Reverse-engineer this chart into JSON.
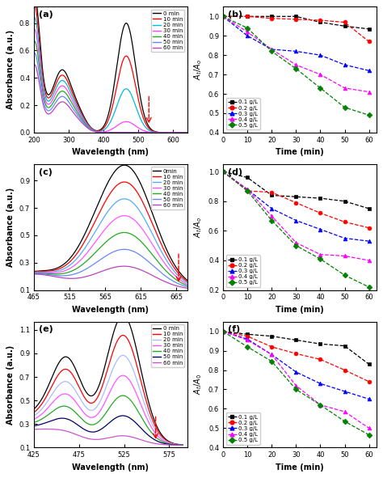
{
  "time_labels_a": [
    "0 min",
    "10 min",
    "20 min",
    "30 min",
    "40 min",
    "50 min",
    "60 min"
  ],
  "time_colors_a": [
    "black",
    "red",
    "#00aacc",
    "magenta",
    "green",
    "#4466ff",
    "#cc44cc"
  ],
  "time_colors_c": [
    "black",
    "red",
    "#00aacc",
    "magenta",
    "green",
    "#4466ff",
    "#cc44cc"
  ],
  "time_colors_e": [
    "black",
    "red",
    "#99bbff",
    "magenta",
    "green",
    "#000088",
    "#cc44cc"
  ],
  "conc_labels": [
    "0.1 g/L",
    "0.2 g/L",
    "0.3 g/L",
    "0.4 g/L",
    "0.5 g/L"
  ],
  "conc_colors": [
    "black",
    "red",
    "blue",
    "magenta",
    "green"
  ],
  "conc_markers": [
    "s",
    "o",
    "^",
    "^",
    "D"
  ],
  "time_points": [
    0,
    10,
    20,
    30,
    40,
    50,
    60
  ],
  "b_data": {
    "01": [
      1.0,
      1.0,
      1.0,
      1.0,
      0.97,
      0.95,
      0.935
    ],
    "02": [
      1.0,
      1.0,
      0.99,
      0.985,
      0.98,
      0.97,
      0.87
    ],
    "03": [
      1.0,
      0.9,
      0.83,
      0.82,
      0.8,
      0.75,
      0.72
    ],
    "04": [
      1.0,
      0.92,
      0.83,
      0.75,
      0.7,
      0.63,
      0.61
    ],
    "05": [
      1.0,
      0.94,
      0.82,
      0.73,
      0.63,
      0.53,
      0.49
    ]
  },
  "d_data": {
    "01": [
      1.0,
      0.96,
      0.84,
      0.83,
      0.82,
      0.8,
      0.75
    ],
    "02": [
      1.0,
      0.87,
      0.86,
      0.79,
      0.72,
      0.66,
      0.62
    ],
    "03": [
      1.0,
      0.88,
      0.75,
      0.67,
      0.61,
      0.55,
      0.53
    ],
    "04": [
      1.0,
      0.88,
      0.7,
      0.52,
      0.44,
      0.43,
      0.4
    ],
    "05": [
      1.0,
      0.87,
      0.67,
      0.5,
      0.41,
      0.3,
      0.22
    ]
  },
  "f_data": {
    "01": [
      1.0,
      0.985,
      0.975,
      0.955,
      0.935,
      0.925,
      0.83
    ],
    "02": [
      1.0,
      0.975,
      0.92,
      0.885,
      0.855,
      0.8,
      0.74
    ],
    "03": [
      1.0,
      0.96,
      0.88,
      0.79,
      0.73,
      0.69,
      0.65
    ],
    "04": [
      1.0,
      0.955,
      0.88,
      0.72,
      0.62,
      0.585,
      0.5
    ],
    "05": [
      1.0,
      0.92,
      0.845,
      0.7,
      0.62,
      0.535,
      0.465
    ]
  },
  "a_xlim": [
    200,
    640
  ],
  "a_ylim": [
    0.0,
    0.92
  ],
  "a_xticks": [
    200,
    300,
    400,
    500,
    600
  ],
  "a_yticks": [
    0.0,
    0.2,
    0.4,
    0.6,
    0.8
  ],
  "c_xlim": [
    465,
    680
  ],
  "c_ylim": [
    0.1,
    1.02
  ],
  "c_xticks": [
    465,
    515,
    565,
    615,
    665
  ],
  "c_yticks": [
    0.1,
    0.3,
    0.5,
    0.7,
    0.9
  ],
  "e_xlim": [
    425,
    595
  ],
  "e_ylim": [
    0.1,
    1.17
  ],
  "e_xticks": [
    425,
    475,
    525,
    575
  ],
  "e_yticks": [
    0.1,
    0.3,
    0.5,
    0.7,
    0.9,
    1.1
  ],
  "b_ylim": [
    0.4,
    1.05
  ],
  "b_yticks": [
    0.4,
    0.5,
    0.6,
    0.7,
    0.8,
    0.9,
    1.0
  ],
  "d_ylim": [
    0.2,
    1.05
  ],
  "d_yticks": [
    0.2,
    0.4,
    0.6,
    0.8,
    1.0
  ],
  "f_ylim": [
    0.4,
    1.05
  ],
  "f_yticks": [
    0.4,
    0.5,
    0.6,
    0.7,
    0.8,
    0.9,
    1.0
  ],
  "right_xticks": [
    0,
    10,
    20,
    30,
    40,
    50,
    60
  ],
  "right_xlim": [
    0,
    63
  ]
}
